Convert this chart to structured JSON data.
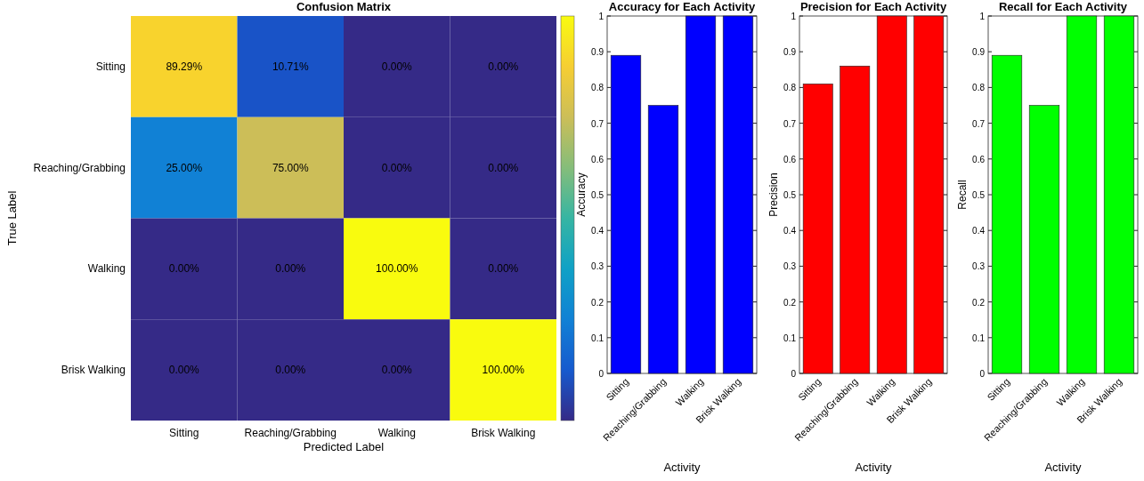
{
  "chart_data": [
    {
      "type": "heatmap",
      "title": "Confusion Matrix",
      "xlabel": "Predicted Label",
      "ylabel": "True Label",
      "categories": [
        "Sitting",
        "Reaching/Grabbing",
        "Walking",
        "Brisk Walking"
      ],
      "y_categories": [
        "Sitting",
        "Reaching/Grabbing",
        "Walking",
        "Brisk Walking"
      ],
      "cells": [
        [
          89.29,
          10.71,
          0,
          0
        ],
        [
          25,
          75,
          0,
          0
        ],
        [
          0,
          0,
          100,
          0
        ],
        [
          0,
          0,
          0,
          100
        ]
      ],
      "cell_labels": [
        [
          "89.29%",
          "10.71%",
          "0.00%",
          "0.00%"
        ],
        [
          "25.00%",
          "75.00%",
          "0.00%",
          "0.00%"
        ],
        [
          "0.00%",
          "0.00%",
          "100.00%",
          "0.00%"
        ],
        [
          "0.00%",
          "0.00%",
          "0.00%",
          "100.00%"
        ]
      ]
    },
    {
      "type": "bar",
      "title": "Accuracy for Each Activity",
      "xlabel": "Activity",
      "ylabel": "Accuracy",
      "categories": [
        "Sitting",
        "Reaching/Grabbing",
        "Walking",
        "Brisk Walking"
      ],
      "values": [
        0.89,
        0.75,
        1,
        1
      ],
      "color": "#0000ff",
      "ylim": [
        0,
        1
      ],
      "yticks": [
        0,
        0.1,
        0.2,
        0.3,
        0.4,
        0.5,
        0.6,
        0.7,
        0.8,
        0.9,
        1
      ]
    },
    {
      "type": "bar",
      "title": "Precision for Each Activity",
      "xlabel": "Activity",
      "ylabel": "Precision",
      "categories": [
        "Sitting",
        "Reaching/Grabbing",
        "Walking",
        "Brisk Walking"
      ],
      "values": [
        0.81,
        0.86,
        1,
        1
      ],
      "color": "#ff0000",
      "ylim": [
        0,
        1
      ],
      "yticks": [
        0,
        0.1,
        0.2,
        0.3,
        0.4,
        0.5,
        0.6,
        0.7,
        0.8,
        0.9,
        1
      ]
    },
    {
      "type": "bar",
      "title": "Recall for Each Activity",
      "xlabel": "Activity",
      "ylabel": "Recall",
      "categories": [
        "Sitting",
        "Reaching/Grabbing",
        "Walking",
        "Brisk Walking"
      ],
      "values": [
        0.89,
        0.75,
        1,
        1
      ],
      "color": "#00ff00",
      "ylim": [
        0,
        1
      ],
      "yticks": [
        0,
        0.1,
        0.2,
        0.3,
        0.4,
        0.5,
        0.6,
        0.7,
        0.8,
        0.9,
        1
      ]
    }
  ]
}
